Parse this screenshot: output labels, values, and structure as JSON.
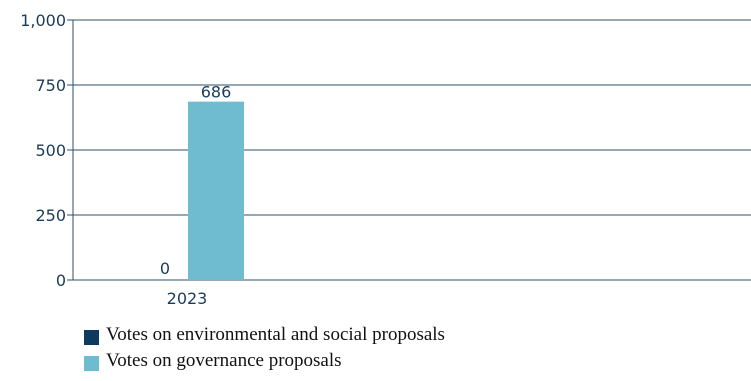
{
  "chart_data": {
    "type": "bar",
    "categories": [
      "2023"
    ],
    "series": [
      {
        "name": "Votes on environmental and social proposals",
        "values": [
          0
        ],
        "color": "#0f3a5f"
      },
      {
        "name": "Votes on governance proposals",
        "values": [
          686
        ],
        "color": "#6fbcd0"
      }
    ],
    "ylim": [
      0,
      1000
    ],
    "yticks": [
      0,
      250,
      500,
      750,
      1000
    ],
    "ytick_labels": [
      "0",
      "250",
      "500",
      "750",
      "1,000"
    ],
    "data_labels": [
      "0",
      "686"
    ],
    "grid": true,
    "legend_position": "bottom-left"
  }
}
